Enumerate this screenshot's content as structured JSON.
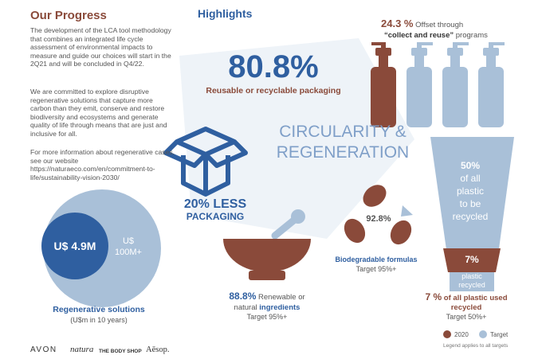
{
  "progress": {
    "title": "Our Progress",
    "paragraphs": [
      "The development of the LCA tool methodology that combines an integrated life cycle assessment of environmental impacts to measure and guide our choices will start in the 2Q21 and will be concluded in Q4/22.",
      "We are committed to explore disruptive regenerative solutions that capture more carbon than they emit, conserve and restore biodiversity and ecosystems and generate quality of life through means that are just and inclusive for all.",
      "For more information about regenerative cases, see our website https://naturaeco.com/en/commitment-to-life/sustainability-vision-2030/"
    ],
    "regenerative": {
      "current": "U$ 4.9M",
      "target_lines": [
        "U$",
        "100M+"
      ],
      "label": "Regenerative solutions",
      "unit": "(U$m in 10 years)"
    },
    "brands": [
      "AVON",
      "natura",
      "THE BODY SHOP",
      "Aēsop."
    ]
  },
  "highlights": {
    "title": "Highlights",
    "reusable": {
      "value": "80.8%",
      "label": "Reusable or recyclable packaging"
    },
    "offset": {
      "value": "24.3 %",
      "line1": "Offset through",
      "bold": "“collect and reuse”",
      "line2": "programs"
    },
    "center_lines": [
      "CIRCULARITY &",
      "REGENERATION"
    ],
    "less_packaging": [
      "20% LESS",
      "PACKAGING"
    ],
    "plastic_target": [
      "50%",
      "of all",
      "plastic",
      "to be",
      "recycled"
    ],
    "plastic_current": {
      "value": "7%",
      "lines": [
        "plastic",
        "recycled"
      ]
    },
    "plastic_caption": {
      "value": "7 %",
      "line1": "of all plastic used",
      "line2": "recycled",
      "target": "Target 50%+"
    },
    "biodegradable": {
      "value": "92.8%",
      "label": "Biodegradable formulas",
      "target": "Target 95%+"
    },
    "renewable": {
      "value": "88.8%",
      "line1": "Renewable or",
      "line2a": "natural",
      "line2b": "ingredients",
      "target": "Target 95%+"
    },
    "legend": {
      "current": "2020",
      "target": "Target",
      "note": "Legend applies to all targets"
    }
  }
}
